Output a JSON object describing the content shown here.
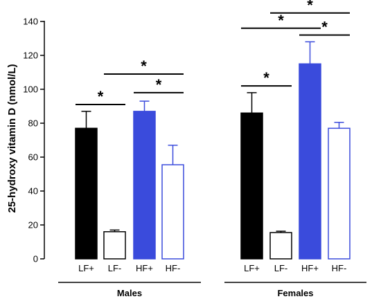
{
  "chart_data": {
    "type": "bar",
    "title": "",
    "ylabel": "25-hydroxy vitamin D (nmol/L)",
    "xlabel": "",
    "ylim": [
      0,
      140
    ],
    "yticks": [
      0,
      20,
      40,
      60,
      80,
      100,
      120,
      140
    ],
    "groups": [
      {
        "name": "Males",
        "bars": [
          {
            "label": "LF+",
            "value": 77,
            "error": 10,
            "fill": "#000000",
            "stroke": "#000000"
          },
          {
            "label": "LF-",
            "value": 16,
            "error": 1,
            "fill": "#ffffff",
            "stroke": "#000000"
          },
          {
            "label": "HF+",
            "value": 87,
            "error": 6,
            "fill": "#3a4bdc",
            "stroke": "#3a4bdc"
          },
          {
            "label": "HF-",
            "value": 55.5,
            "error": 11.5,
            "fill": "#ffffff",
            "stroke": "#3a4bdc"
          }
        ],
        "significance": [
          {
            "from": 0,
            "to": 1,
            "y": 91,
            "label": "*"
          },
          {
            "from": 2,
            "to": 3,
            "y": 98,
            "label": "*"
          },
          {
            "from": 1,
            "to": 3,
            "y": 109,
            "label": "*"
          }
        ]
      },
      {
        "name": "Females",
        "bars": [
          {
            "label": "LF+",
            "value": 86,
            "error": 12,
            "fill": "#000000",
            "stroke": "#000000"
          },
          {
            "label": "LF-",
            "value": 15.5,
            "error": 0.8,
            "fill": "#ffffff",
            "stroke": "#000000"
          },
          {
            "label": "HF+",
            "value": 115,
            "error": 13,
            "fill": "#3a4bdc",
            "stroke": "#3a4bdc"
          },
          {
            "label": "HF-",
            "value": 77,
            "error": 3.5,
            "fill": "#ffffff",
            "stroke": "#3a4bdc"
          }
        ],
        "significance": [
          {
            "from": 0,
            "to": 1,
            "y": 102,
            "label": "*"
          },
          {
            "from": 0,
            "to": 2,
            "y": 136,
            "label": "*"
          },
          {
            "from": 2,
            "to": 3,
            "y": 132,
            "label": "*"
          },
          {
            "from": 1,
            "to": 3,
            "y": 145,
            "label": "*"
          }
        ]
      }
    ]
  }
}
